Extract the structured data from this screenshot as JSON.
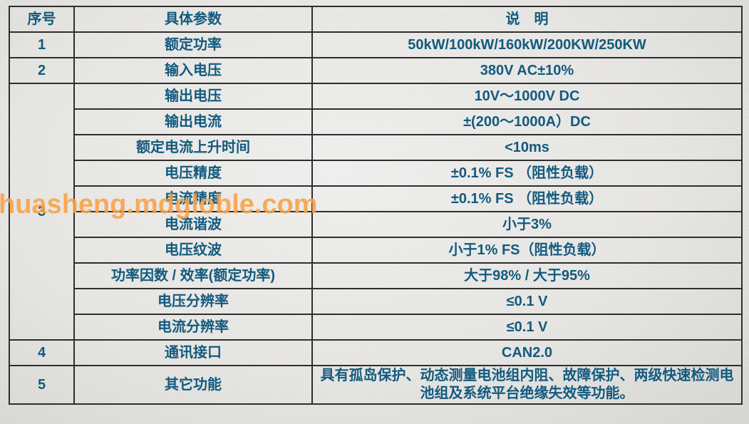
{
  "watermark": {
    "text": "huasheng.mdgloble.com",
    "color": "#f8a046"
  },
  "style": {
    "text_color": "#135a7e",
    "border_color": "#2e2e2e",
    "background_color": "#e8e7e4"
  },
  "table": {
    "headers": {
      "no": "序号",
      "param": "具体参数",
      "desc": "说　明"
    },
    "rows": [
      {
        "no": "1",
        "param": "额定功率",
        "desc": "50kW/100kW/160kW/200KW/250KW"
      },
      {
        "no": "2",
        "param": "输入电压",
        "desc": "380V AC±10%"
      },
      {
        "no": "3",
        "param": "输出电压",
        "desc": "10V～1000V DC"
      },
      {
        "param": "输出电流",
        "desc": "±(200～1000A）DC"
      },
      {
        "param": "额定电流上升时间",
        "desc": "<10ms"
      },
      {
        "param": "电压精度",
        "desc": "±0.1% FS （阻性负载）"
      },
      {
        "param": "电流精度",
        "desc": "±0.1% FS （阻性负载）"
      },
      {
        "param": "电流谐波",
        "desc": "小于3%"
      },
      {
        "param": "电压纹波",
        "desc": "小于1% FS（阻性负载）"
      },
      {
        "param": "功率因数 / 效率(额定功率)",
        "desc": "大于98% / 大于95%"
      },
      {
        "param": "电压分辨率",
        "desc": "≤0.1 V"
      },
      {
        "param": "电流分辨率",
        "desc": "≤0.1 V"
      },
      {
        "no": "4",
        "param": "通讯接口",
        "desc": "CAN2.0"
      },
      {
        "no": "5",
        "param": "其它功能",
        "desc": "具有孤岛保护、动态测量电池组内阻、故障保护、两级快速检测电池组及系统平台绝缘失效等功能。"
      }
    ]
  }
}
